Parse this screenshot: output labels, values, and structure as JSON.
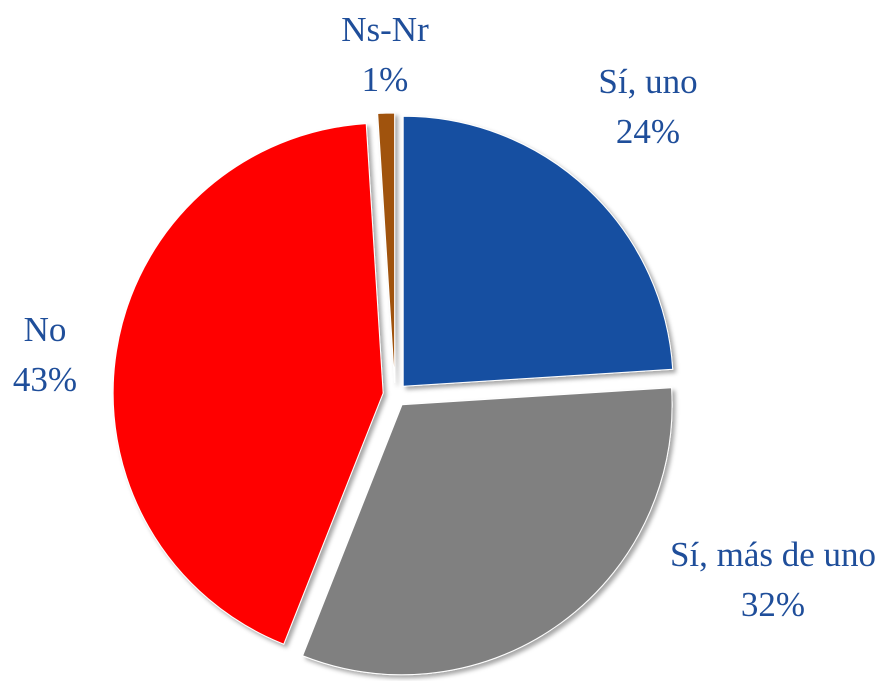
{
  "chart_data": {
    "type": "pie",
    "categories": [
      "Sí, uno",
      "Sí, más de uno",
      "No",
      "Ns-Nr"
    ],
    "values": [
      24,
      32,
      43,
      1
    ],
    "value_labels": [
      "24%",
      "32%",
      "43%",
      "1%"
    ],
    "colors": [
      "#1650a1",
      "#808080",
      "#ff0000",
      "#a0520f"
    ]
  }
}
